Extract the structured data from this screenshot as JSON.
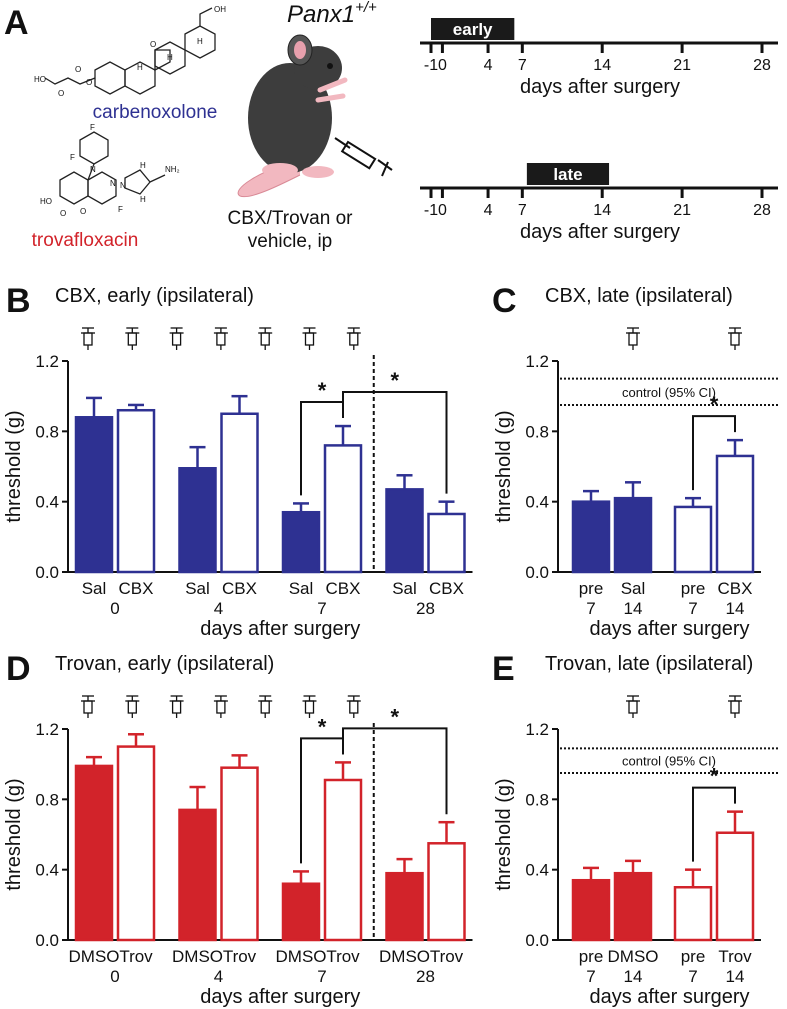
{
  "panel_a": {
    "letter": "A",
    "compound_1": "carbenoxolone",
    "compound_1_color": "#2e3192",
    "compound_1_atoms": [
      "OH",
      "O",
      "O",
      "HO",
      "O",
      "O",
      "H",
      "H",
      "H"
    ],
    "compound_2": "trovafloxacin",
    "compound_2_color": "#d2232a",
    "compound_2_atoms": [
      "F",
      "F",
      "N",
      "N",
      "N",
      "H",
      "H",
      "NH₂",
      "HO",
      "O",
      "O",
      "F"
    ],
    "genotype": "Panx1",
    "genotype_sup": "+/+",
    "treatment": [
      "CBX/Trovan or",
      "vehicle, ip"
    ]
  },
  "chart_data": [
    {
      "type": "timeline",
      "label": "early",
      "period": [
        -1,
        6.3
      ],
      "xlim": [
        -1,
        28
      ],
      "xticks": [
        -1,
        0,
        4,
        7,
        14,
        21,
        28
      ],
      "xlabel": "days after surgery"
    },
    {
      "type": "timeline",
      "label": "late",
      "period": [
        7.4,
        14.6
      ],
      "xlim": [
        -1,
        28
      ],
      "xticks": [
        -1,
        0,
        4,
        7,
        14,
        21,
        28
      ],
      "xlabel": "days after surgery"
    },
    {
      "type": "bar",
      "panel": "B",
      "title": "CBX, early (ipsilateral)",
      "ylabel": "threshold (g)",
      "xlabel": "days after surgery",
      "categories": [
        "Sal",
        "CBX",
        "Sal",
        "CBX",
        "Sal",
        "CBX",
        "Sal",
        "CBX"
      ],
      "group_labels": [
        "0",
        "4",
        "7",
        "28"
      ],
      "values": [
        0.88,
        0.92,
        0.59,
        0.9,
        0.34,
        0.72,
        0.47,
        0.33
      ],
      "errors": [
        0.11,
        0.03,
        0.12,
        0.1,
        0.05,
        0.11,
        0.08,
        0.07
      ],
      "filled": [
        true,
        false,
        true,
        false,
        true,
        false,
        true,
        false
      ],
      "color": "#2e3192",
      "ylim": [
        0,
        1.2
      ],
      "yticks": [
        {
          "value": 0,
          "label": "0.0"
        },
        0.4,
        0.8,
        1.2
      ],
      "injections": 7,
      "significance": [
        {
          "bars": [
            4,
            5
          ],
          "label": "*"
        },
        {
          "bars": [
            5,
            7
          ],
          "label": "*"
        }
      ],
      "divider_after": 5
    },
    {
      "type": "bar",
      "panel": "C",
      "title": "CBX, late (ipsilateral)",
      "ylabel": "threshold (g)",
      "xlabel": "days after surgery",
      "categories": [
        "pre",
        "Sal",
        "pre",
        "CBX"
      ],
      "group_labels": [
        "7",
        "14",
        "7",
        "14"
      ],
      "single_group_labels": true,
      "values": [
        0.4,
        0.42,
        0.37,
        0.66
      ],
      "errors": [
        0.06,
        0.09,
        0.05,
        0.09
      ],
      "filled": [
        true,
        true,
        false,
        false
      ],
      "color": "#2e3192",
      "ylim": [
        0,
        1.2
      ],
      "yticks": [
        {
          "value": 0,
          "label": "0.0"
        },
        0.4,
        0.8,
        1.2
      ],
      "injections": 2,
      "reference_lines": [
        1.1,
        0.95
      ],
      "reference_label": "control (95% CI)",
      "significance": [
        {
          "bars": [
            2,
            3
          ],
          "label": "*"
        }
      ]
    },
    {
      "type": "bar",
      "panel": "D",
      "title": "Trovan, early (ipsilateral)",
      "ylabel": "threshold (g)",
      "xlabel": "days after surgery",
      "categories": [
        "DMSO",
        "Trov",
        "DMSO",
        "Trov",
        "DMSO",
        "Trov",
        "DMSO",
        "Trov"
      ],
      "group_labels": [
        "0",
        "4",
        "7",
        "28"
      ],
      "values": [
        0.99,
        1.1,
        0.74,
        0.98,
        0.32,
        0.91,
        0.38,
        0.55
      ],
      "errors": [
        0.05,
        0.07,
        0.13,
        0.07,
        0.07,
        0.1,
        0.08,
        0.12
      ],
      "filled": [
        true,
        false,
        true,
        false,
        true,
        false,
        true,
        false
      ],
      "color": "#d2232a",
      "ylim": [
        0,
        1.2
      ],
      "yticks": [
        {
          "value": 0,
          "label": "0.0"
        },
        0.4,
        0.8,
        1.2
      ],
      "injections": 7,
      "significance": [
        {
          "bars": [
            4,
            5
          ],
          "label": "*"
        },
        {
          "bars": [
            5,
            7
          ],
          "label": "*"
        }
      ],
      "divider_after": 5
    },
    {
      "type": "bar",
      "panel": "E",
      "title": "Trovan, late (ipsilateral)",
      "ylabel": "threshold (g)",
      "xlabel": "days after surgery",
      "categories": [
        "pre",
        "DMSO",
        "pre",
        "Trov"
      ],
      "group_labels": [
        "7",
        "14",
        "7",
        "14"
      ],
      "single_group_labels": true,
      "values": [
        0.34,
        0.38,
        0.3,
        0.61
      ],
      "errors": [
        0.07,
        0.07,
        0.1,
        0.12
      ],
      "filled": [
        true,
        true,
        false,
        false
      ],
      "color": "#d2232a",
      "ylim": [
        0,
        1.2
      ],
      "yticks": [
        {
          "value": 0,
          "label": "0.0"
        },
        0.4,
        0.8,
        1.2
      ],
      "injections": 2,
      "reference_lines": [
        1.09,
        0.95
      ],
      "reference_label": "control (95% CI)",
      "significance": [
        {
          "bars": [
            2,
            3
          ],
          "label": "*"
        }
      ]
    }
  ]
}
